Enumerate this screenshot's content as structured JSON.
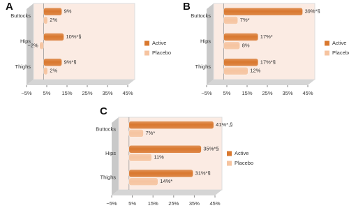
{
  "chart_data": [
    {
      "type": "bar",
      "orientation": "horizontal",
      "label": "A",
      "categories": [
        "Buttocks",
        "Hips",
        "Thighs"
      ],
      "series": [
        {
          "name": "Active",
          "color": "#d9782f",
          "values": [
            9,
            10,
            9
          ],
          "value_labels": [
            "9%",
            "10%*§",
            "9%*§"
          ]
        },
        {
          "name": "Placebo",
          "color": "#f6c4a0",
          "values": [
            2,
            -2,
            2
          ],
          "value_labels": [
            "2%",
            "−2%",
            "2%"
          ]
        }
      ],
      "xlim": [
        -5,
        45
      ],
      "xticks": [
        {
          "value": -5,
          "label": "−5%"
        },
        {
          "value": 5,
          "label": "5%"
        },
        {
          "value": 15,
          "label": "15%"
        },
        {
          "value": 25,
          "label": "25%"
        },
        {
          "value": 35,
          "label": "35%"
        },
        {
          "value": 45,
          "label": "45%"
        }
      ],
      "legend": "right",
      "grid": false
    },
    {
      "type": "bar",
      "orientation": "horizontal",
      "label": "B",
      "categories": [
        "Buttocks",
        "Hips",
        "Thighs"
      ],
      "series": [
        {
          "name": "Active",
          "color": "#d9782f",
          "values": [
            39,
            17,
            17
          ],
          "value_labels": [
            "39%*§",
            "17%*",
            "17%*§"
          ]
        },
        {
          "name": "Placebo",
          "color": "#f6c4a0",
          "values": [
            7,
            8,
            12
          ],
          "value_labels": [
            "7%*",
            "8%",
            "12%"
          ]
        }
      ],
      "xlim": [
        -5,
        45
      ],
      "xticks": [
        {
          "value": -5,
          "label": "−5%"
        },
        {
          "value": 5,
          "label": "5%"
        },
        {
          "value": 15,
          "label": "15%"
        },
        {
          "value": 25,
          "label": "25%"
        },
        {
          "value": 35,
          "label": "35%"
        },
        {
          "value": 45,
          "label": "45%"
        }
      ],
      "legend": "right",
      "grid": false
    },
    {
      "type": "bar",
      "orientation": "horizontal",
      "label": "C",
      "categories": [
        "Buttocks",
        "Hips",
        "Thighs"
      ],
      "series": [
        {
          "name": "Active",
          "color": "#d9782f",
          "values": [
            41,
            35,
            31
          ],
          "value_labels": [
            "41%*,§",
            "35%*§",
            "31%*§"
          ]
        },
        {
          "name": "Placebo",
          "color": "#f6c4a0",
          "values": [
            7,
            11,
            14
          ],
          "value_labels": [
            "7%*",
            "11%",
            "14%*"
          ]
        }
      ],
      "xlim": [
        -5,
        45
      ],
      "xticks": [
        {
          "value": -5,
          "label": "−5%"
        },
        {
          "value": 5,
          "label": "5%"
        },
        {
          "value": 15,
          "label": "15%"
        },
        {
          "value": 25,
          "label": "25%"
        },
        {
          "value": 35,
          "label": "35%"
        },
        {
          "value": 45,
          "label": "45%"
        }
      ],
      "legend": "right",
      "grid": false
    }
  ]
}
